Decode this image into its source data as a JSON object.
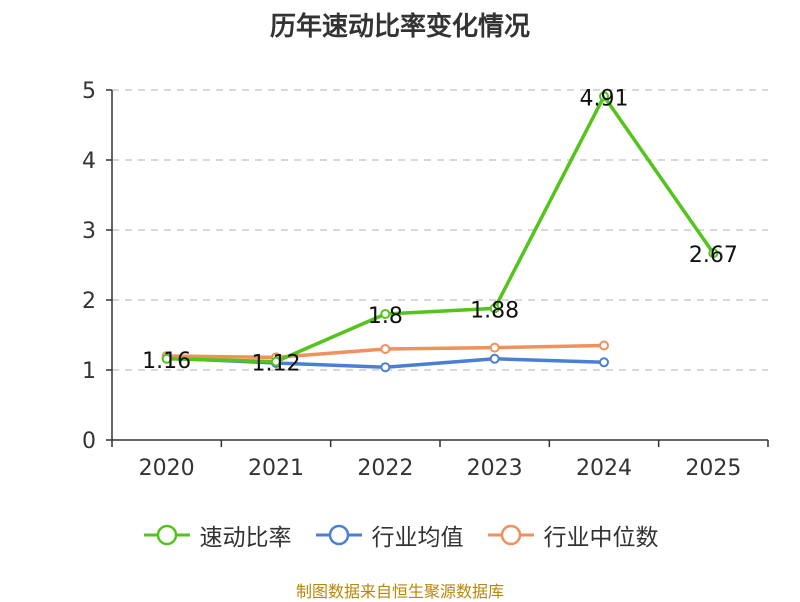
{
  "title": "历年速动比率变化情况",
  "source": "制图数据来自恒生聚源数据库",
  "chart_data": {
    "type": "line",
    "title": "历年速动比率变化情况",
    "xlabel": "",
    "ylabel": "",
    "categories": [
      "2020",
      "2021",
      "2022",
      "2023",
      "2024",
      "2025"
    ],
    "ylim": [
      0,
      5
    ],
    "yticks": [
      0,
      1,
      2,
      3,
      4,
      5
    ],
    "grid": true,
    "legend_position": "bottom",
    "series": [
      {
        "name": "速动比率",
        "color": "#52c41a",
        "values": [
          1.16,
          1.12,
          1.8,
          1.88,
          4.91,
          2.67
        ],
        "labels": [
          "1.16",
          "1.12",
          "1.8",
          "1.88",
          "4.91",
          "2.67"
        ]
      },
      {
        "name": "行业均值",
        "color": "#4a7fd4",
        "values": [
          1.17,
          1.1,
          1.04,
          1.16,
          1.11,
          null
        ]
      },
      {
        "name": "行业中位数",
        "color": "#f0905a",
        "values": [
          1.2,
          1.18,
          1.3,
          1.32,
          1.35,
          null
        ]
      }
    ]
  }
}
